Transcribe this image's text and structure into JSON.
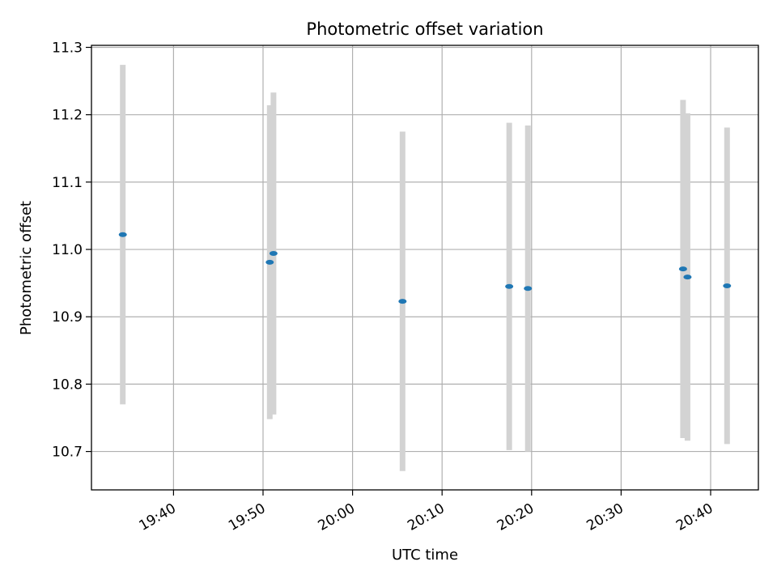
{
  "chart_data": {
    "type": "scatter",
    "title": "Photometric offset variation",
    "xlabel": "UTC time",
    "ylabel": "Photometric offset",
    "x_ticks": [
      "19:40",
      "19:50",
      "20:00",
      "20:10",
      "20:20",
      "20:30",
      "20:40"
    ],
    "y_ticks": [
      "10.7",
      "10.8",
      "10.9",
      "11.0",
      "11.1",
      "11.2",
      "11.3"
    ],
    "xlim": [
      "19:30:50",
      "20:45:20"
    ],
    "ylim": [
      10.643,
      11.303
    ],
    "grid": true,
    "error_bar_color": "#d3d3d3",
    "marker_color": "#1f77b4",
    "series": [
      {
        "points": [
          {
            "x": "19:34:20",
            "y": 11.022,
            "yerr": 0.252
          },
          {
            "x": "19:50:45",
            "y": 10.981,
            "yerr": 0.233
          },
          {
            "x": "19:51:10",
            "y": 10.994,
            "yerr": 0.239
          },
          {
            "x": "20:05:35",
            "y": 10.923,
            "yerr": 0.252
          },
          {
            "x": "20:17:30",
            "y": 10.945,
            "yerr": 0.243
          },
          {
            "x": "20:19:35",
            "y": 10.942,
            "yerr": 0.242
          },
          {
            "x": "20:36:55",
            "y": 10.971,
            "yerr": 0.251
          },
          {
            "x": "20:37:25",
            "y": 10.959,
            "yerr": 0.243
          },
          {
            "x": "20:41:50",
            "y": 10.946,
            "yerr": 0.235
          }
        ]
      }
    ]
  }
}
